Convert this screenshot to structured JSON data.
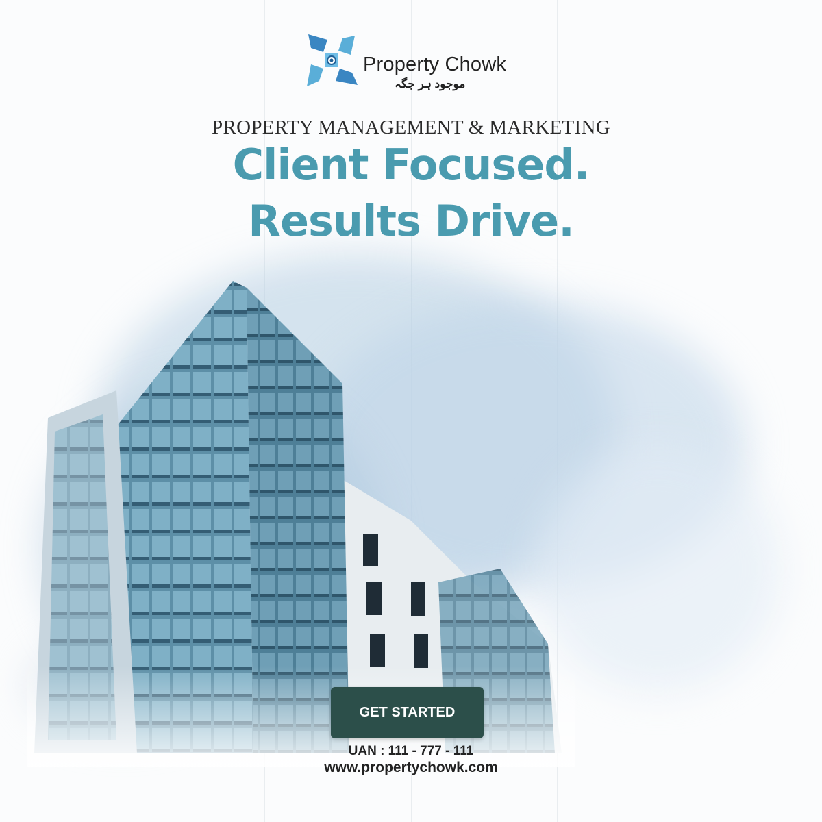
{
  "brand": {
    "name": "Property Chowk",
    "tagline": "موجود ہر جگہ",
    "colors": {
      "accent": "#4a9baf",
      "logo_blue": "#3a86c2",
      "button": "#2c4f4a"
    }
  },
  "hero": {
    "kicker": "PROPERTY MANAGEMENT & MARKETING",
    "headline_line1": "Client Focused.",
    "headline_line2": "Results Drive."
  },
  "cta": {
    "label": "GET STARTED"
  },
  "contact": {
    "uan": "UAN : 111 - 777 - 111",
    "website": "www.propertychowk.com"
  },
  "icons": [
    "logo-mark-icon"
  ]
}
